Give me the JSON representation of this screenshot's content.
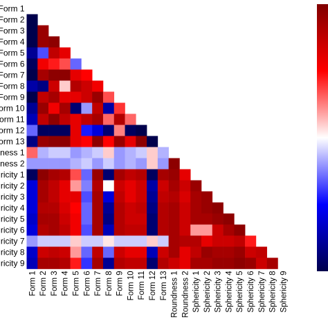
{
  "chart_data": {
    "type": "heatmap",
    "title": "",
    "xlabel": "",
    "ylabel": "",
    "labels": [
      "Form 1",
      "Form 2",
      "Form 3",
      "Form 4",
      "Form 5",
      "Form 6",
      "Form 7",
      "Form 8",
      "Form 9",
      "Form 10",
      "Form 11",
      "Form 12",
      "Form 13",
      "Roundness 1",
      "Roundness 2",
      "Sphericity 1",
      "Sphericity 2",
      "Sphericity 3",
      "Sphericity 4",
      "Sphericity 5",
      "Sphericity 6",
      "Sphericity 7",
      "Sphericity 8",
      "Sphericity 9"
    ],
    "row_labels_visible": [
      "Form 1",
      "Form 2",
      "Form 3",
      "Form 4",
      "Form 5",
      "Form 6",
      "Form 7",
      "Form 8",
      "Form 9",
      "Form 10",
      "Form 11",
      "Form 12",
      "Form 13",
      "dness 1",
      "dness 2",
      "ricity 1",
      "ricity 2",
      "ricity 3",
      "ricity 4",
      "ricity 5",
      "ricity 6",
      "ricity 7",
      "ricity 8",
      "ricity 9"
    ],
    "matrix": [
      [],
      [
        -1.0
      ],
      [
        -1.0,
        0.9
      ],
      [
        -1.0,
        0.9,
        0.95
      ],
      [
        -0.8,
        -0.35,
        0.75,
        0.6
      ],
      [
        -0.95,
        0.55,
        0.45,
        0.35,
        -0.3
      ],
      [
        -1.0,
        0.85,
        0.95,
        0.95,
        0.6,
        0.5
      ],
      [
        -0.75,
        -0.85,
        0.7,
        0.1,
        0.8,
        0.7,
        0.55
      ],
      [
        -1.0,
        0.75,
        0.85,
        0.6,
        0.6,
        0.7,
        0.9,
        0.35
      ],
      [
        -0.8,
        0.9,
        0.55,
        0.85,
        -0.9,
        -0.2,
        0.75,
        -0.75,
        0.4
      ],
      [
        -0.7,
        0.75,
        0.95,
        0.75,
        0.6,
        0.75,
        0.85,
        0.3,
        0.8,
        0.3
      ],
      [
        -0.3,
        -0.95,
        -0.95,
        -0.95,
        0.6,
        -0.45,
        -0.6,
        -0.9,
        0.25,
        -0.95,
        -1.0
      ],
      [
        -0.85,
        0.9,
        0.95,
        0.95,
        0.6,
        0.5,
        0.95,
        0.5,
        0.9,
        0.6,
        0.95,
        -1.0
      ],
      [
        0.3,
        -0.15,
        -0.1,
        -0.1,
        -0.2,
        -0.15,
        -0.1,
        0.1,
        -0.2,
        -0.15,
        -0.1,
        0.1,
        -0.15
      ],
      [
        -0.2,
        -0.2,
        -0.2,
        -0.2,
        -0.15,
        -0.1,
        -0.2,
        -0.1,
        -0.2,
        -0.15,
        -0.2,
        0.1,
        -0.2,
        0.95
      ],
      [
        -0.95,
        0.95,
        0.85,
        0.8,
        0.35,
        -0.3,
        0.9,
        -0.9,
        0.85,
        0.75,
        0.8,
        -0.95,
        0.85,
        0.9,
        0.6
      ],
      [
        -0.6,
        0.85,
        0.75,
        0.6,
        0.2,
        -0.25,
        0.8,
        0.0,
        0.7,
        0.6,
        0.7,
        -0.75,
        0.7,
        0.85,
        0.7,
        0.9
      ],
      [
        -0.6,
        0.85,
        0.75,
        0.6,
        0.6,
        -0.35,
        0.85,
        -0.6,
        0.75,
        0.6,
        0.7,
        -0.8,
        0.75,
        0.8,
        0.65,
        0.85,
        0.9
      ],
      [
        -0.6,
        0.8,
        0.8,
        0.65,
        0.5,
        -0.3,
        0.85,
        -0.8,
        0.8,
        0.7,
        0.75,
        -0.85,
        0.8,
        0.85,
        0.7,
        0.85,
        0.9,
        0.95
      ],
      [
        -0.65,
        0.85,
        0.85,
        0.7,
        0.55,
        -0.3,
        0.85,
        -0.85,
        0.8,
        0.7,
        0.7,
        -0.9,
        0.8,
        0.85,
        0.7,
        0.85,
        0.85,
        0.9,
        0.95
      ],
      [
        -0.6,
        0.8,
        0.85,
        0.75,
        0.55,
        -0.35,
        0.85,
        -0.7,
        0.8,
        0.75,
        0.75,
        -0.9,
        0.8,
        0.85,
        0.7,
        0.2,
        0.2,
        0.7,
        0.85,
        0.95
      ],
      [
        -0.2,
        -0.1,
        -0.1,
        -0.1,
        0.1,
        -0.1,
        -0.1,
        0.05,
        -0.1,
        -0.1,
        -0.1,
        0.1,
        -0.1,
        0.85,
        0.8,
        0.8,
        0.6,
        0.7,
        0.7,
        0.75,
        0.45
      ],
      [
        -0.65,
        0.7,
        0.75,
        0.7,
        0.2,
        -0.3,
        0.75,
        -0.3,
        0.7,
        0.6,
        0.6,
        -0.7,
        0.7,
        0.85,
        0.6,
        0.75,
        0.9,
        0.85,
        0.85,
        0.9,
        0.7,
        0.75
      ],
      [
        -0.7,
        0.85,
        0.85,
        0.8,
        0.45,
        -0.4,
        0.85,
        -0.8,
        0.8,
        0.75,
        0.75,
        -0.9,
        0.8,
        0.7,
        0.6,
        0.85,
        0.85,
        0.9,
        0.9,
        0.95,
        0.9,
        0.7,
        0.85
      ]
    ],
    "colorbar": {
      "colormap": "seismic",
      "ticks": [],
      "range": [
        -1,
        1
      ]
    }
  }
}
